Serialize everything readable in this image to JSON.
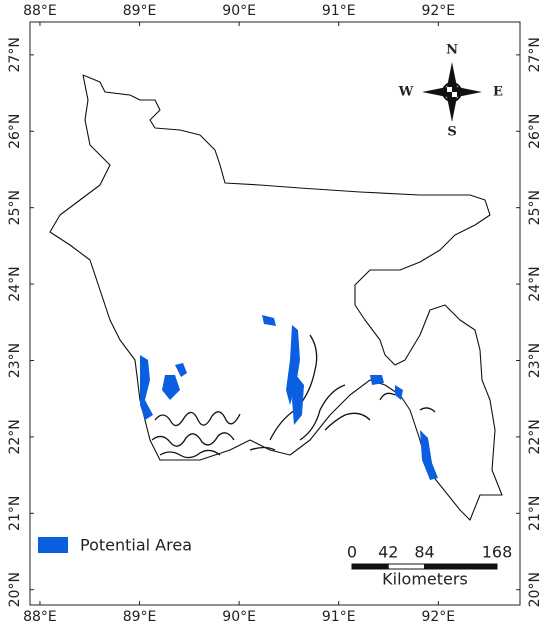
{
  "map": {
    "lon_range": [
      87.9,
      92.82
    ],
    "lat_range": [
      19.8,
      27.43
    ],
    "lon_ticks": [
      {
        "value": 88,
        "label": "88°E"
      },
      {
        "value": 89,
        "label": "89°E"
      },
      {
        "value": 90,
        "label": "90°E"
      },
      {
        "value": 91,
        "label": "91°E"
      },
      {
        "value": 92,
        "label": "92°E"
      }
    ],
    "lat_ticks": [
      {
        "value": 20,
        "label": "20°N"
      },
      {
        "value": 21,
        "label": "21°N"
      },
      {
        "value": 22,
        "label": "22°N"
      },
      {
        "value": 23,
        "label": "23°N"
      },
      {
        "value": 24,
        "label": "24°N"
      },
      {
        "value": 25,
        "label": "25°N"
      },
      {
        "value": 26,
        "label": "26°N"
      },
      {
        "value": 27,
        "label": "27°N"
      }
    ],
    "compass": {
      "n": "N",
      "s": "S",
      "e": "E",
      "w": "W"
    },
    "legend": {
      "label": "Potential Area",
      "color": "#0a5ee0"
    },
    "scale_bar": {
      "ticks": [
        0,
        42,
        84,
        168
      ],
      "unit": "Kilometers"
    }
  }
}
